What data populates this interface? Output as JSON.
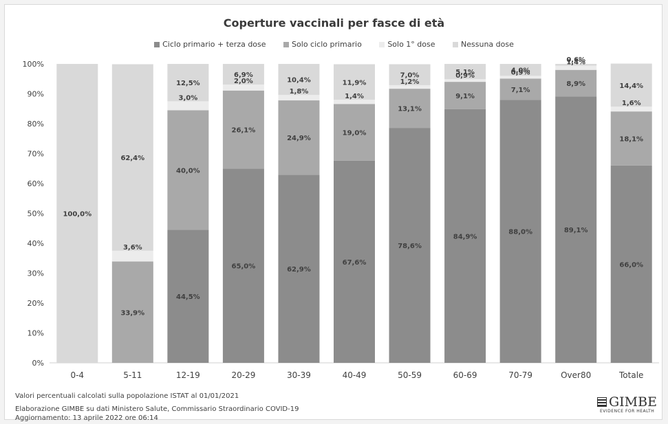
{
  "chart_data": {
    "type": "bar",
    "stacked": true,
    "title": "Coperture vaccinali per fasce di età",
    "categories": [
      "0-4",
      "5-11",
      "12-19",
      "20-29",
      "30-39",
      "40-49",
      "50-59",
      "60-69",
      "70-79",
      "Over80",
      "Totale"
    ],
    "series": [
      {
        "name": "Ciclo primario + terza dose",
        "color": "#8c8c8c",
        "values": [
          0,
          0,
          44.5,
          65.0,
          62.9,
          67.6,
          78.6,
          84.9,
          88.0,
          89.1,
          66.0
        ],
        "labels": [
          "",
          "",
          "44,5%",
          "65,0%",
          "62,9%",
          "67,6%",
          "78,6%",
          "84,9%",
          "88,0%",
          "89,1%",
          "66,0%"
        ]
      },
      {
        "name": "Solo ciclo primario",
        "color": "#a9a9a9",
        "values": [
          0,
          33.9,
          40.0,
          26.1,
          24.9,
          19.0,
          13.1,
          9.1,
          7.1,
          8.9,
          18.1
        ],
        "labels": [
          "",
          "33,9%",
          "40,0%",
          "26,1%",
          "24,9%",
          "19,0%",
          "13,1%",
          "9,1%",
          "7,1%",
          "8,9%",
          "18,1%"
        ]
      },
      {
        "name": "Solo 1° dose",
        "color": "#ececec",
        "values": [
          0,
          3.6,
          3.0,
          2.0,
          1.8,
          1.4,
          1.2,
          0.9,
          0.9,
          1.4,
          1.6
        ],
        "labels": [
          "",
          "3,6%",
          "3,0%",
          "2,0%",
          "1,8%",
          "1,4%",
          "1,2%",
          "0,9%",
          "0,9%",
          "1,4%",
          "1,6%"
        ]
      },
      {
        "name": "Nessuna dose",
        "color": "#d9d9d9",
        "values": [
          100.0,
          62.4,
          12.5,
          6.9,
          10.4,
          11.9,
          7.0,
          5.1,
          4.0,
          0.6,
          14.4
        ],
        "labels": [
          "100,0%",
          "62,4%",
          "12,5%",
          "6,9%",
          "10,4%",
          "11,9%",
          "7,0%",
          "5,1%",
          "4,0%",
          "0,6%",
          "14,4%"
        ]
      }
    ],
    "ylim": [
      0,
      100
    ],
    "yticks": [
      "0%",
      "10%",
      "20%",
      "30%",
      "40%",
      "50%",
      "60%",
      "70%",
      "80%",
      "90%",
      "100%"
    ],
    "legend_position": "top",
    "grid": false
  },
  "footer": {
    "note": "Valori percentuali calcolati sulla popolazione ISTAT al 01/01/2021",
    "source": "Elaborazione GIMBE su dati Ministero Salute, Commissario Straordinario COVID-19",
    "update": "Aggiornamento: 13 aprile 2022 ore 06:14"
  },
  "logo": {
    "name": "GIMBE",
    "tagline": "EVIDENCE FOR HEALTH"
  }
}
